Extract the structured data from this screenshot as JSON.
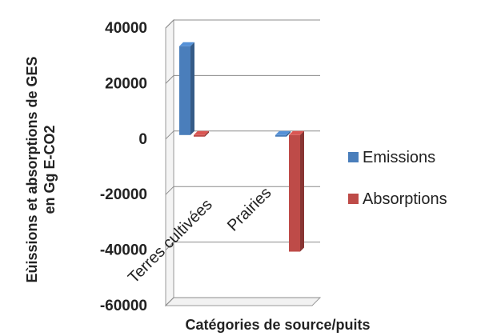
{
  "chart_data": {
    "type": "bar",
    "categories": [
      "Terres cultivées",
      "Prairies"
    ],
    "series": [
      {
        "name": "Emissions",
        "values": [
          32000,
          0
        ],
        "color": "#4a7ebb"
      },
      {
        "name": "Absorptions",
        "values": [
          -500,
          -42000
        ],
        "color": "#be4b48"
      }
    ],
    "ylim": [
      -60000,
      40000
    ],
    "yticks": [
      "40000",
      "20000",
      "0",
      "-20000",
      "-40000",
      "-60000"
    ],
    "ytick_values": [
      40000,
      20000,
      0,
      -20000,
      -40000,
      -60000
    ],
    "xlabel": "Catégories de source/puits",
    "ylabel_line1": "Eùissions et absorptions de GES",
    "ylabel_line2": "en Gg E-CO2",
    "legend_position": "right",
    "grid": true,
    "style": "3d-column"
  }
}
